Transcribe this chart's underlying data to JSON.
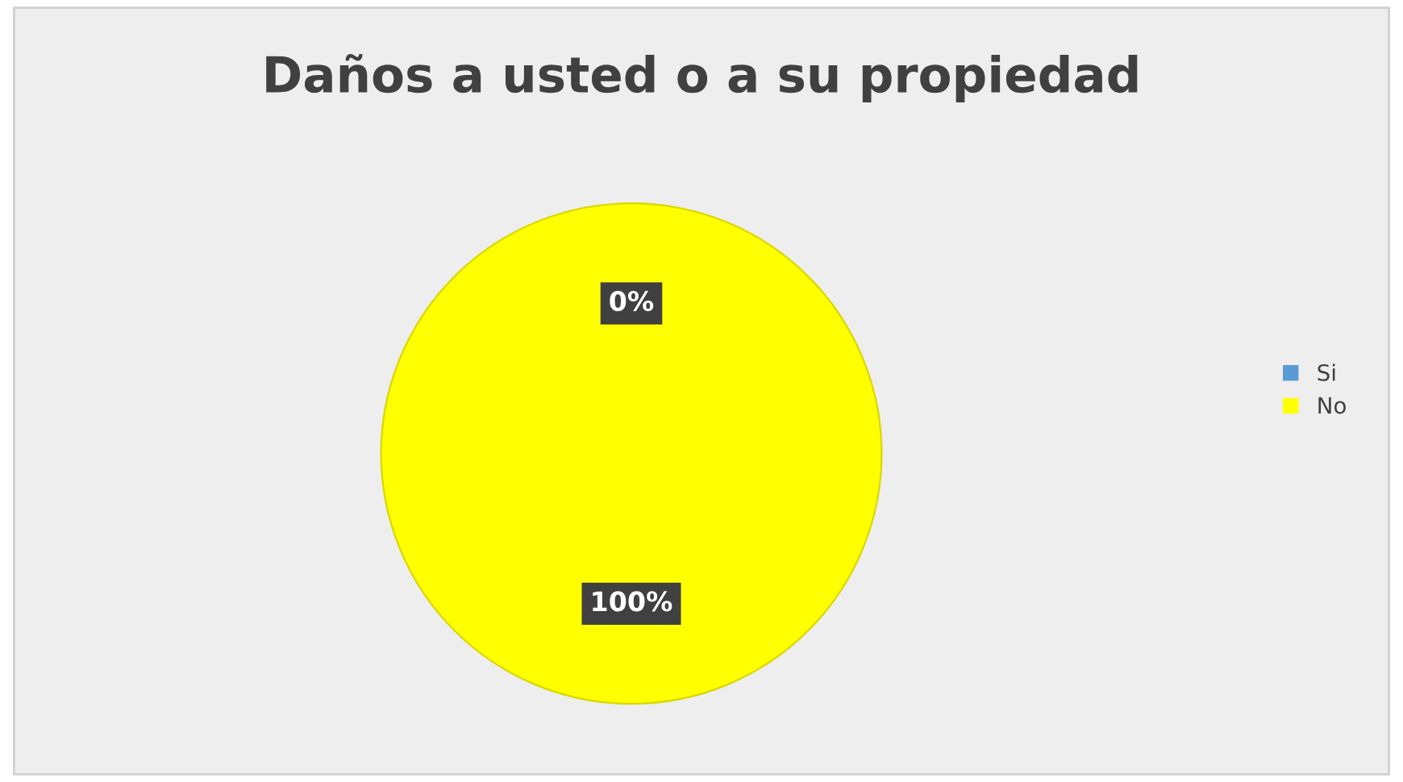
{
  "chart_data": {
    "type": "pie",
    "title": "Daños a usted o a su propiedad",
    "categories": [
      "Si",
      "No"
    ],
    "values": [
      0,
      100
    ],
    "colors": [
      "#5b9bd5",
      "#ffff00"
    ],
    "value_labels": [
      "0%",
      "100%"
    ],
    "legend": "right"
  }
}
